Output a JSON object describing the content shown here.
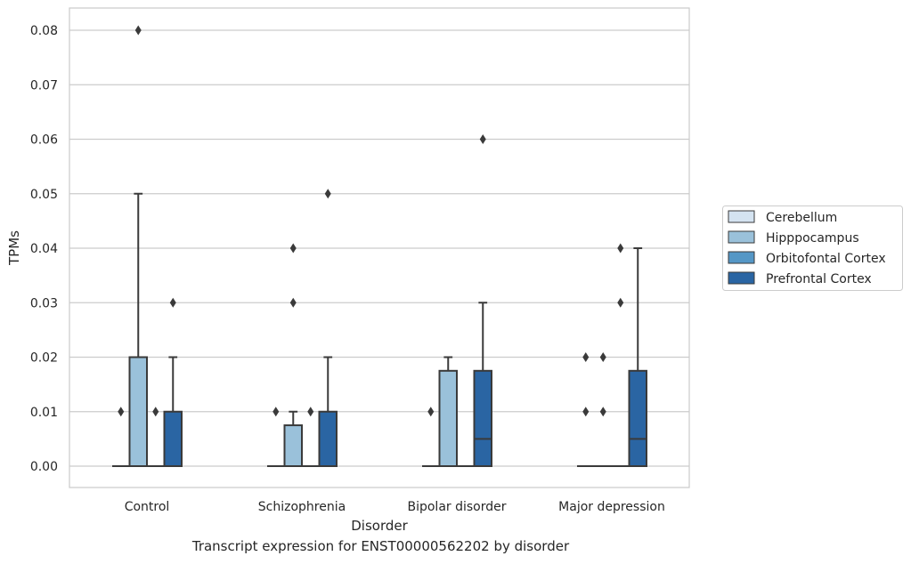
{
  "caption": "Transcript expression for ENST00000562202 by disorder",
  "chart_data": {
    "type": "box",
    "xlabel": "Disorder",
    "ylabel": "TPMs",
    "ylim": [
      -0.004,
      0.084
    ],
    "yticks": [
      0.0,
      0.01,
      0.02,
      0.03,
      0.04,
      0.05,
      0.06,
      0.07,
      0.08
    ],
    "ytick_labels": [
      "0.00",
      "0.01",
      "0.02",
      "0.03",
      "0.04",
      "0.05",
      "0.06",
      "0.07",
      "0.08"
    ],
    "grid": "horizontal",
    "legend_placement": "right",
    "categories": [
      "Control",
      "Schizophrenia",
      "Bipolar disorder",
      "Major depression"
    ],
    "series": [
      {
        "name": "Cerebellum",
        "color": "#d4e3f1",
        "boxes": [
          {
            "q1": 0,
            "median": 0,
            "q3": 0,
            "whisker_low": 0,
            "whisker_high": 0,
            "outliers": [
              0.01
            ]
          },
          {
            "q1": 0,
            "median": 0,
            "q3": 0,
            "whisker_low": 0,
            "whisker_high": 0,
            "outliers": [
              0.01
            ]
          },
          {
            "q1": 0,
            "median": 0,
            "q3": 0,
            "whisker_low": 0,
            "whisker_high": 0,
            "outliers": [
              0.01
            ]
          },
          {
            "q1": 0,
            "median": 0,
            "q3": 0,
            "whisker_low": 0,
            "whisker_high": 0,
            "outliers": [
              0.01,
              0.02
            ]
          }
        ]
      },
      {
        "name": "Hipppocampus",
        "color": "#9ac1da",
        "boxes": [
          {
            "q1": 0,
            "median": 0,
            "q3": 0.02,
            "whisker_low": 0,
            "whisker_high": 0.05,
            "outliers": [
              0.08
            ]
          },
          {
            "q1": 0,
            "median": 0,
            "q3": 0.0075,
            "whisker_low": 0,
            "whisker_high": 0.01,
            "outliers": [
              0.03,
              0.04
            ]
          },
          {
            "q1": 0,
            "median": 0,
            "q3": 0.0175,
            "whisker_low": 0,
            "whisker_high": 0.02,
            "outliers": []
          },
          {
            "q1": 0,
            "median": 0,
            "q3": 0,
            "whisker_low": 0,
            "whisker_high": 0,
            "outliers": [
              0.01,
              0.02
            ]
          }
        ]
      },
      {
        "name": "Orbitofontal Cortex",
        "color": "#5597c6",
        "boxes": [
          {
            "q1": 0,
            "median": 0,
            "q3": 0,
            "whisker_low": 0,
            "whisker_high": 0,
            "outliers": [
              0.01
            ]
          },
          {
            "q1": 0,
            "median": 0,
            "q3": 0,
            "whisker_low": 0,
            "whisker_high": 0,
            "outliers": [
              0.01
            ]
          },
          {
            "q1": 0,
            "median": 0,
            "q3": 0,
            "whisker_low": 0,
            "whisker_high": 0,
            "outliers": []
          },
          {
            "q1": 0,
            "median": 0,
            "q3": 0,
            "whisker_low": 0,
            "whisker_high": 0,
            "outliers": [
              0.03,
              0.04
            ]
          }
        ]
      },
      {
        "name": "Prefrontal Cortex",
        "color": "#2a65a3",
        "boxes": [
          {
            "q1": 0,
            "median": 0,
            "q3": 0.01,
            "whisker_low": 0,
            "whisker_high": 0.02,
            "outliers": [
              0.03
            ]
          },
          {
            "q1": 0,
            "median": 0,
            "q3": 0.01,
            "whisker_low": 0,
            "whisker_high": 0.02,
            "outliers": [
              0.05
            ]
          },
          {
            "q1": 0,
            "median": 0.005,
            "q3": 0.0175,
            "whisker_low": 0,
            "whisker_high": 0.03,
            "outliers": [
              0.06
            ]
          },
          {
            "q1": 0,
            "median": 0.005,
            "q3": 0.0175,
            "whisker_low": 0,
            "whisker_high": 0.04,
            "outliers": []
          }
        ]
      }
    ]
  }
}
